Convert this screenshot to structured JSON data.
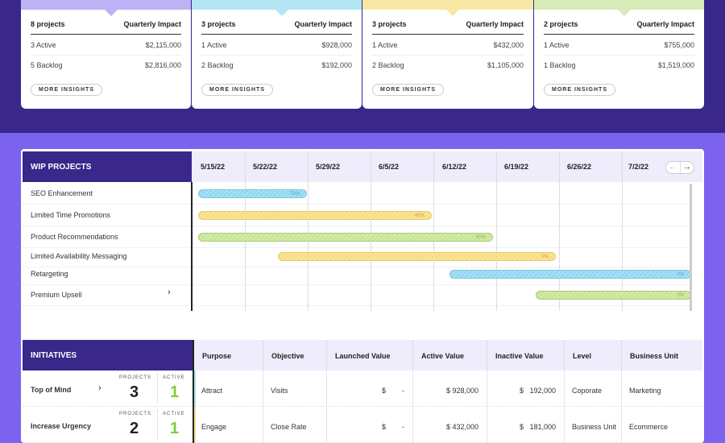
{
  "cards": [
    {
      "projects": "8 projects",
      "impact_label": "Quarterly Impact",
      "active": "3 Active",
      "active_value": "$2,115,000",
      "backlog": "5 Backlog",
      "backlog_value": "$2,816,000",
      "button": "MORE INSIGHTS",
      "color": "#bdb2f5"
    },
    {
      "projects": "3 projects",
      "impact_label": "Quarterly Impact",
      "active": "1 Active",
      "active_value": "$928,000",
      "backlog": "2 Backlog",
      "backlog_value": "$192,000",
      "button": "MORE INSIGHTS",
      "color": "#b2e6f5"
    },
    {
      "projects": "3 projects",
      "impact_label": "Quarterly Impact",
      "active": "1 Active",
      "active_value": "$432,000",
      "backlog": "2 Backlog",
      "backlog_value": "$1,105,000",
      "button": "MORE INSIGHTS",
      "color": "#f8e8a6"
    },
    {
      "projects": "2 projects",
      "impact_label": "Quarterly Impact",
      "active": "1 Active",
      "active_value": "$755,000",
      "backlog": "1 Backlog",
      "backlog_value": "$1,519,000",
      "button": "MORE INSIGHTS",
      "color": "#d8ebb9"
    }
  ],
  "gantt": {
    "title": "WIP PROJECTS",
    "dates": [
      "5/15/22",
      "5/22/22",
      "5/29/22",
      "6/5/22",
      "6/12/22",
      "6/19/22",
      "6/26/22",
      "7/2/22"
    ],
    "projects": [
      {
        "name": "SEO Enhancement",
        "progress": "75%",
        "color": "blue"
      },
      {
        "name": "Limited Time Promotions",
        "progress": "45%",
        "color": "yel"
      },
      {
        "name": "Product Recommendations",
        "progress": "90%",
        "color": "grn"
      },
      {
        "name": "Limited Availability Messaging",
        "progress": "0%",
        "color": "yel"
      },
      {
        "name": "Retargeting",
        "progress": "0%",
        "color": "blue"
      },
      {
        "name": "Premium Upsell",
        "progress": "0%",
        "color": "grn"
      }
    ]
  },
  "initiatives": {
    "title": "INITIATIVES",
    "columns": [
      "Purpose",
      "Objective",
      "Launched Value",
      "Active Value",
      "Inactive Value",
      "Level",
      "Business Unit"
    ],
    "projects_label": "PROJECTS",
    "active_label": "ACTIVE",
    "rows": [
      {
        "name": "Top of Mind",
        "projects": "3",
        "active": "1",
        "purpose": "Attract",
        "objective": "Visits",
        "launched": "$        -",
        "active_value": "$ 928,000",
        "inactive": "$   192,000",
        "level": "Coporate",
        "unit": "Marketing"
      },
      {
        "name": "Increase Urgency",
        "projects": "2",
        "active": "1",
        "purpose": "Engage",
        "objective": "Close Rate",
        "launched": "$        -",
        "active_value": "$ 432,000",
        "inactive": "$   181,000",
        "level": "Business Unit",
        "unit": "Ecommerce"
      }
    ]
  }
}
